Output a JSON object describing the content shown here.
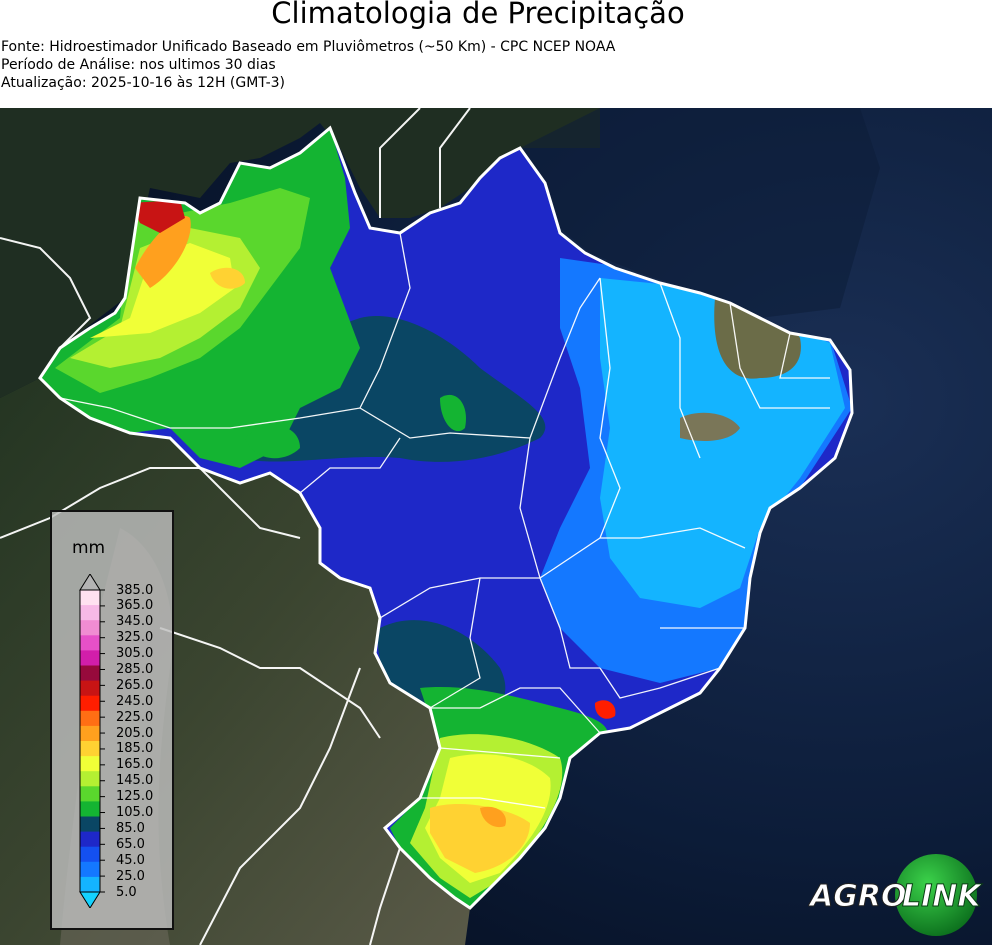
{
  "header": {
    "title": "Climatologia de Precipitação",
    "source": "Fonte: Hidroestimador Unificado Baseado em Pluviômetros (~50 Km) - CPC NCEP NOAA",
    "period": "Período de Análise: nos ultimos 30 dias",
    "updated": "Atualização: 2025-10-16 às 12H (GMT-3)"
  },
  "legend": {
    "unit": "mm",
    "ticks": [
      "385.0",
      "365.0",
      "345.0",
      "325.0",
      "305.0",
      "285.0",
      "265.0",
      "245.0",
      "225.0",
      "205.0",
      "185.0",
      "165.0",
      "145.0",
      "125.0",
      "105.0",
      "85.0",
      "65.0",
      "45.0",
      "25.0",
      "5.0"
    ],
    "colors": [
      "#b4b4b4",
      "#ffe1f0",
      "#f7b9e6",
      "#f08cd2",
      "#e650c8",
      "#d21eaa",
      "#960a3c",
      "#c81414",
      "#ff1e00",
      "#ff6e14",
      "#ffa01e",
      "#ffd232",
      "#f0ff37",
      "#b4f032",
      "#5ad72d",
      "#14b432",
      "#0a4664",
      "#1e28c8",
      "#1450f0",
      "#1478ff",
      "#14b4ff",
      "#14d2ff"
    ]
  },
  "logo": {
    "text_left": "AGRO",
    "text_right": "LINK"
  },
  "colors": {
    "ocean": "#0a1a30",
    "land": "#2b3a26",
    "boundary": "#ffffff"
  }
}
